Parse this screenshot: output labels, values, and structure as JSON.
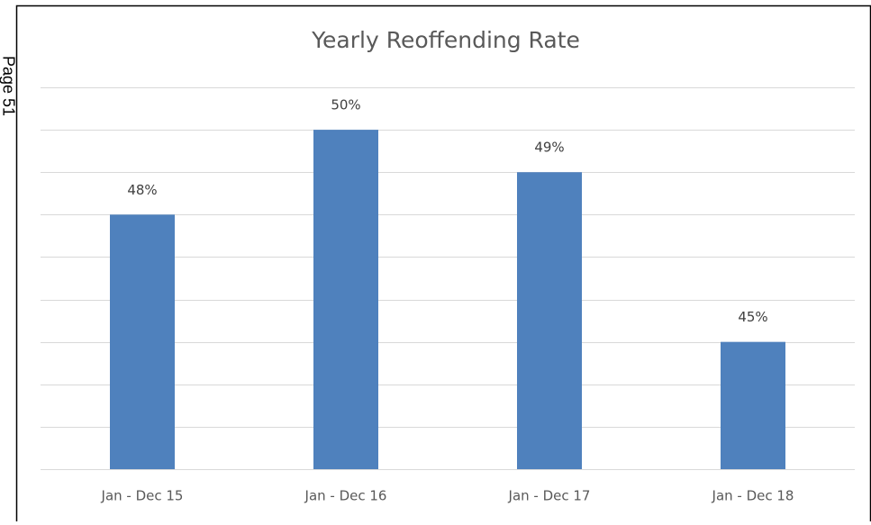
{
  "page_label": "Page 51",
  "chart_data": {
    "type": "bar",
    "title": "Yearly Reoffending Rate",
    "categories": [
      "Jan - Dec 15",
      "Jan - Dec 16",
      "Jan - Dec 17",
      "Jan - Dec 18"
    ],
    "values": [
      48,
      50,
      49,
      45
    ],
    "value_labels": [
      "48%",
      "50%",
      "49%",
      "45%"
    ],
    "color": "#4f81bd",
    "ylim": [
      42,
      51
    ],
    "yticks": [
      42,
      43,
      44,
      45,
      46,
      47,
      48,
      49,
      50,
      51
    ],
    "grid": true
  }
}
